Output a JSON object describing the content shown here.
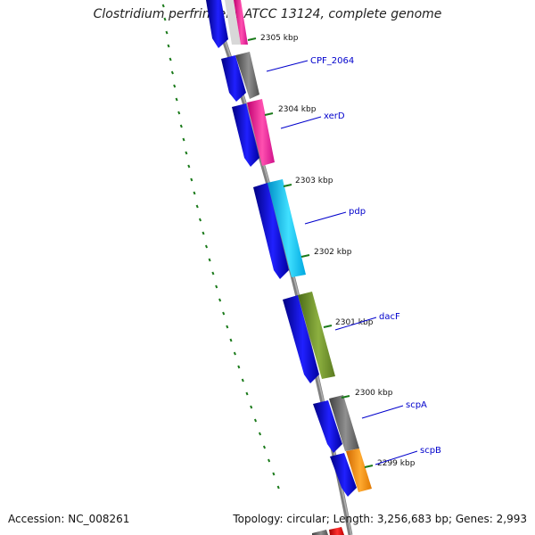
{
  "title": "Clostridium perfringens ATCC 13124, complete genome",
  "footer": {
    "accession": "Accession: NC_008261",
    "topology": "Topology: circular; Length: 3,256,683 bp; Genes: 2,993"
  },
  "ruler": {
    "unit": "kbp",
    "ticks": [
      {
        "label": "2305 kbp",
        "value": 2305
      },
      {
        "label": "2304 kbp",
        "value": 2304
      },
      {
        "label": "2303 kbp",
        "value": 2303
      },
      {
        "label": "2302 kbp",
        "value": 2302
      },
      {
        "label": "2301 kbp",
        "value": 2301
      },
      {
        "label": "2300 kbp",
        "value": 2300
      },
      {
        "label": "2299 kbp",
        "value": 2299
      }
    ]
  },
  "gene_labels": [
    "CPF_2064",
    "xerD",
    "pdp",
    "dacF",
    "scpA",
    "scpB"
  ],
  "colors": {
    "backbone": "#808080",
    "cds": "#1010e8",
    "dotted_track": "#1a7a1a",
    "tick": "#1a7a1a",
    "label": "#0000cc",
    "cog_gray": "#707070",
    "cog_pink": "#ff1493",
    "cog_cyan": "#00c0f0",
    "cog_olive": "#6b8e23",
    "cog_orange": "#ff8c00",
    "cog_red": "#e00000"
  }
}
